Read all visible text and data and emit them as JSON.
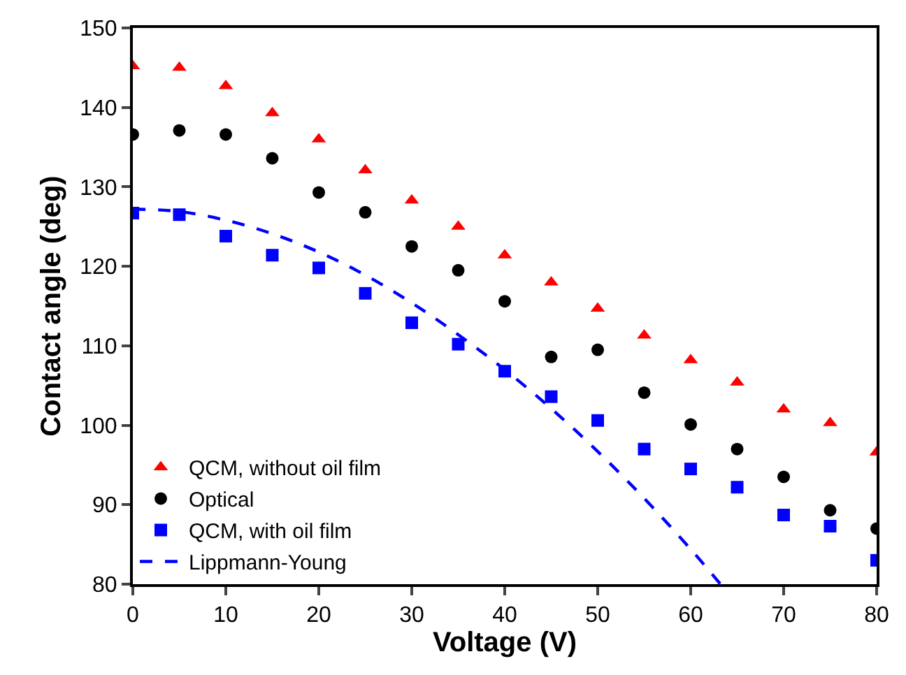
{
  "chart_data": {
    "type": "scatter",
    "xlabel": "Voltage (V)",
    "ylabel": "Contact angle (deg)",
    "xlim": [
      0,
      80
    ],
    "xticks": [
      0,
      10,
      20,
      30,
      40,
      50,
      60,
      70,
      80
    ],
    "ylim": [
      80,
      150
    ],
    "yticks": [
      80,
      90,
      100,
      110,
      120,
      130,
      140,
      150
    ],
    "legend": "bottom left",
    "series": [
      {
        "name": "QCM, without oil film",
        "color": "#ff0000",
        "marker": "triangle",
        "x": [
          0,
          5,
          10,
          15,
          20,
          25,
          30,
          35,
          40,
          45,
          50,
          55,
          60,
          65,
          70,
          75,
          80
        ],
        "values": [
          145.2,
          145,
          142.7,
          139.3,
          136,
          132.1,
          128.3,
          125,
          121.4,
          118,
          114.7,
          111.3,
          108.2,
          105.4,
          102,
          100.3,
          96.6
        ]
      },
      {
        "name": "Optical",
        "color": "#000000",
        "marker": "circle",
        "x": [
          0,
          5,
          10,
          15,
          20,
          25,
          30,
          35,
          40,
          45,
          50,
          55,
          60,
          65,
          70,
          75,
          80
        ],
        "values": [
          136.6,
          137.1,
          136.6,
          133.6,
          129.3,
          126.8,
          122.5,
          119.5,
          115.6,
          108.6,
          109.5,
          104.1,
          100.1,
          97,
          93.5,
          89.3,
          87
        ]
      },
      {
        "name": "QCM, with oil film",
        "color": "#0000ff",
        "marker": "square",
        "x": [
          0,
          5,
          10,
          15,
          20,
          25,
          30,
          35,
          40,
          45,
          50,
          55,
          60,
          65,
          70,
          75,
          80
        ],
        "values": [
          126.7,
          126.5,
          123.8,
          121.4,
          119.8,
          116.6,
          112.9,
          110.2,
          106.8,
          103.6,
          100.6,
          97,
          94.5,
          92.2,
          88.7,
          87.3,
          83
        ]
      },
      {
        "name": "Lippmann-Young",
        "type": "line",
        "color": "#0000ff",
        "line_style": "dashed",
        "x": [
          0,
          5,
          10,
          15,
          20,
          25,
          30,
          35,
          40,
          45,
          50,
          55,
          60,
          63.2
        ],
        "values": [
          127.2,
          126.9,
          125.8,
          124.1,
          121.8,
          118.9,
          115.4,
          111.4,
          107,
          102.1,
          96.7,
          90.8,
          84.4,
          80
        ]
      }
    ]
  }
}
